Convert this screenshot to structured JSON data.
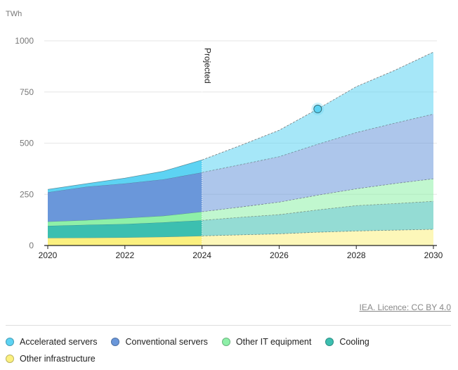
{
  "chart_data": {
    "type": "area",
    "stacked": true,
    "ylabel": "TWh",
    "ylim": [
      0,
      1000
    ],
    "yticks": [
      0,
      250,
      500,
      750,
      1000
    ],
    "xticks": [
      2020,
      2022,
      2024,
      2026,
      2028,
      2030
    ],
    "xlim": [
      2020,
      2030
    ],
    "grid": true,
    "legend_position": "bottom",
    "annotation": "Projected",
    "projection_start": 2024,
    "highlight_point": {
      "x": 2027,
      "series": "Accelerated servers"
    },
    "x": [
      2020,
      2021,
      2022,
      2023,
      2024,
      2025,
      2026,
      2027,
      2028,
      2029,
      2030
    ],
    "series": [
      {
        "name": "Other infrastructure",
        "color": "#fbf07f",
        "values": [
          37,
          38,
          39,
          42,
          47,
          52,
          57,
          65,
          71,
          75,
          79
        ]
      },
      {
        "name": "Cooling",
        "color": "#3cbfb0",
        "values": [
          59,
          63,
          66,
          71,
          76,
          86,
          94,
          109,
          124,
          130,
          137
        ]
      },
      {
        "name": "Other IT equipment",
        "color": "#8ef0a8",
        "values": [
          21,
          23,
          29,
          32,
          42,
          50,
          61,
          72,
          82,
          98,
          110
        ]
      },
      {
        "name": "Conventional servers",
        "color": "#6a97da",
        "values": [
          143,
          163,
          169,
          178,
          192,
          207,
          222,
          249,
          275,
          295,
          316
        ]
      },
      {
        "name": "Accelerated servers",
        "color": "#5dd3f3",
        "values": [
          14,
          15,
          26,
          40,
          61,
          94,
          129,
          172,
          224,
          258,
          303
        ]
      }
    ]
  },
  "legend": [
    "Accelerated servers",
    "Conventional servers",
    "Other IT equipment",
    "Cooling",
    "Other infrastructure"
  ],
  "source": "IEA. Licence: CC BY 4.0"
}
